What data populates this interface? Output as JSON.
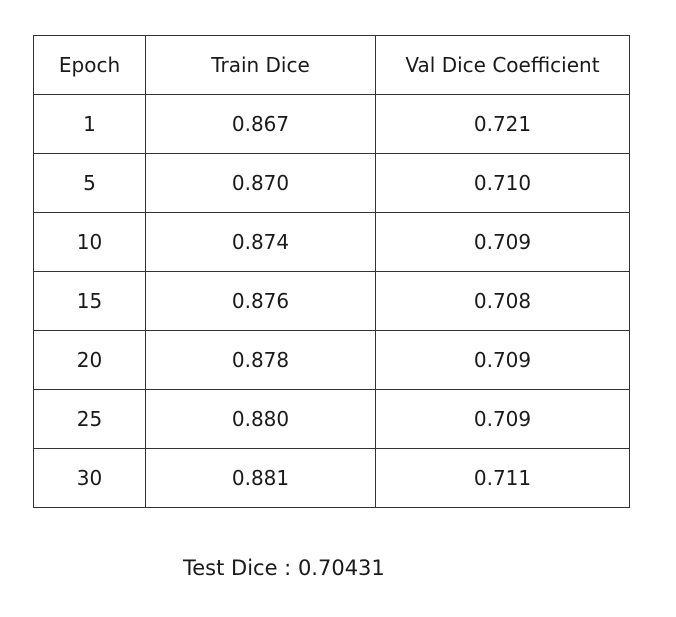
{
  "chart_data": {
    "type": "table",
    "columns": [
      "Epoch",
      "Train Dice",
      "Val Dice Coefficient"
    ],
    "rows": [
      [
        "1",
        "0.867",
        "0.721"
      ],
      [
        "5",
        "0.870",
        "0.710"
      ],
      [
        "10",
        "0.874",
        "0.709"
      ],
      [
        "15",
        "0.876",
        "0.708"
      ],
      [
        "20",
        "0.878",
        "0.709"
      ],
      [
        "25",
        "0.880",
        "0.709"
      ],
      [
        "30",
        "0.881",
        "0.711"
      ]
    ]
  },
  "summary": {
    "label": "Test Dice",
    "separator": " : ",
    "value": "0.70431"
  }
}
